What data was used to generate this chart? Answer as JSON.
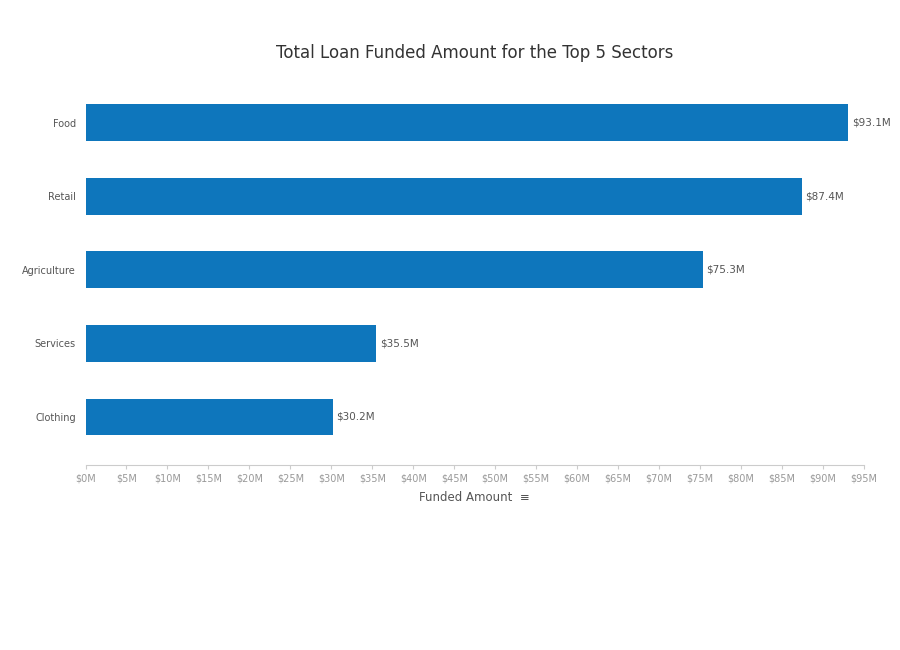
{
  "title": "Total Loan Funded Amount for the Top 5 Sectors",
  "categories": [
    "Food",
    "Retail",
    "Agriculture",
    "Services",
    "Clothing"
  ],
  "values": [
    93.1,
    87.4,
    75.3,
    35.5,
    30.2
  ],
  "labels": [
    "$93.1M",
    "$87.4M",
    "$75.3M",
    "$35.5M",
    "$30.2M"
  ],
  "bar_color": "#0e76bc",
  "background_color": "#ffffff",
  "xlabel": "Funded Amount",
  "xlim": [
    0,
    95
  ],
  "xticks": [
    0,
    5,
    10,
    15,
    20,
    25,
    30,
    35,
    40,
    45,
    50,
    55,
    60,
    65,
    70,
    75,
    80,
    85,
    90,
    95
  ],
  "xtick_labels": [
    "$0M",
    "$5M",
    "$10M",
    "$15M",
    "$20M",
    "$25M",
    "$30M",
    "$35M",
    "$40M",
    "$45M",
    "$50M",
    "$55M",
    "$60M",
    "$65M",
    "$70M",
    "$75M",
    "$80M",
    "$85M",
    "$90M",
    "$95M"
  ],
  "title_fontsize": 12,
  "label_fontsize": 7.5,
  "tick_fontsize": 7,
  "xlabel_fontsize": 8.5,
  "bar_height": 0.5,
  "label_color": "#555555",
  "tick_color": "#999999",
  "spine_color": "#cccccc",
  "title_color": "#333333"
}
